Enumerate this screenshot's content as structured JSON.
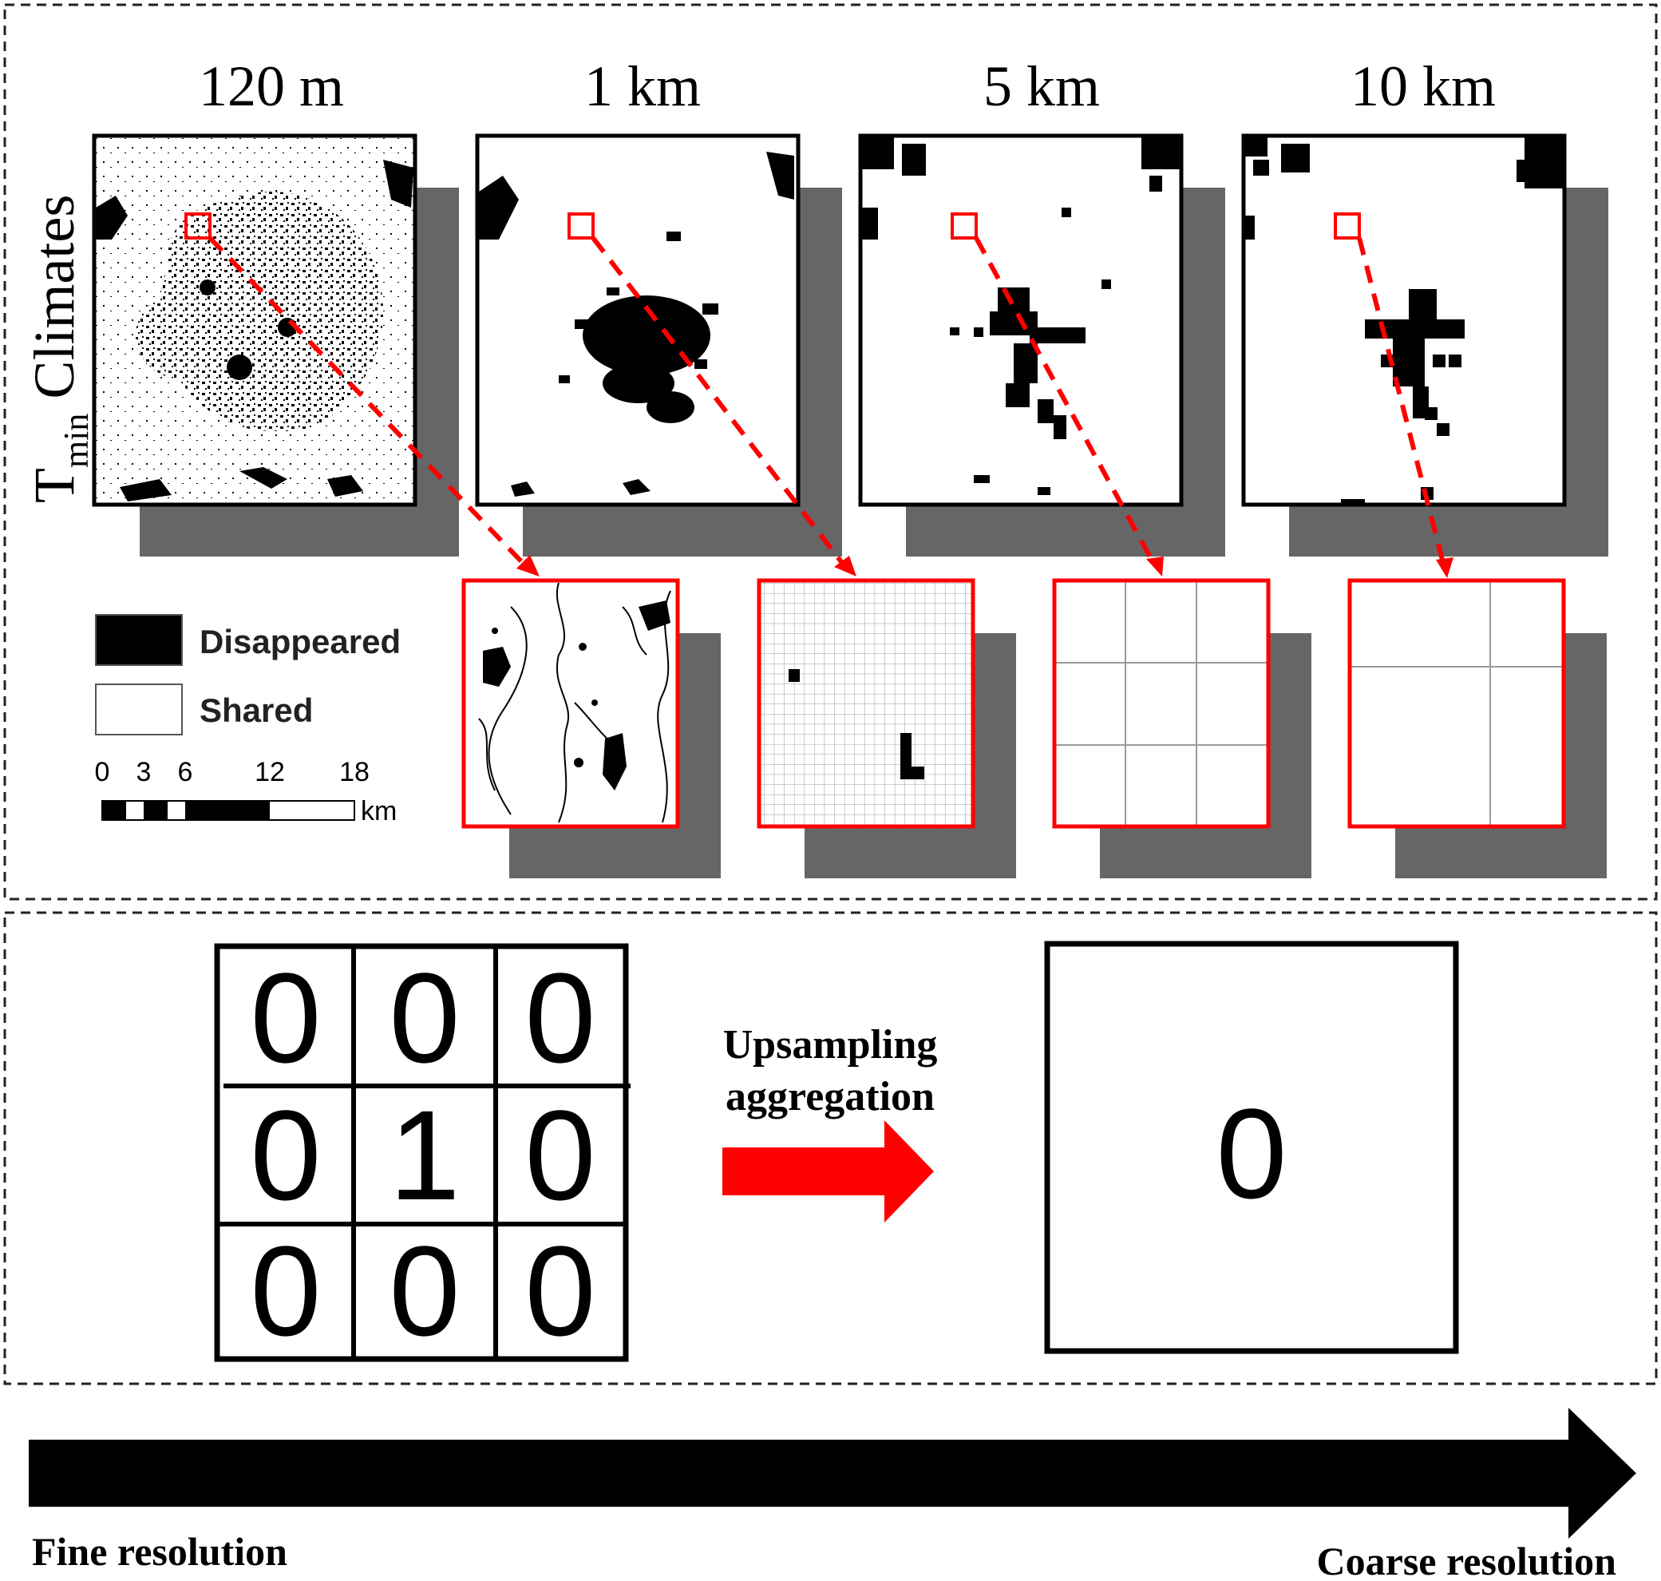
{
  "resolution_panels": [
    {
      "label": "120 m",
      "map": "map-120m"
    },
    {
      "label": "1 km",
      "map": "map-1km"
    },
    {
      "label": "5 km",
      "map": "map-5km"
    },
    {
      "label": "10 km",
      "map": "map-10km"
    }
  ],
  "row_label": {
    "main": "T",
    "subscript": "min",
    "suffix": " Climates"
  },
  "legend": [
    {
      "label": "Disappeared",
      "color": "#000000"
    },
    {
      "label": "Shared",
      "color": "#ffffff"
    }
  ],
  "scale_bar": {
    "ticks": [
      "0",
      "3",
      "6",
      "12",
      "18"
    ],
    "unit": "km"
  },
  "aggregation": {
    "fine_grid": [
      [
        "0",
        "0",
        "0"
      ],
      [
        "0",
        "1",
        "0"
      ],
      [
        "0",
        "0",
        "0"
      ]
    ],
    "arrow_label_line1": "Upsampling",
    "arrow_label_line2": "aggregation",
    "coarse_value": "0"
  },
  "axis": {
    "left": "Fine resolution",
    "right": "Coarse resolution"
  },
  "colors": {
    "highlight": "#ff0000",
    "shadow": "#666666",
    "ink": "#000000"
  }
}
